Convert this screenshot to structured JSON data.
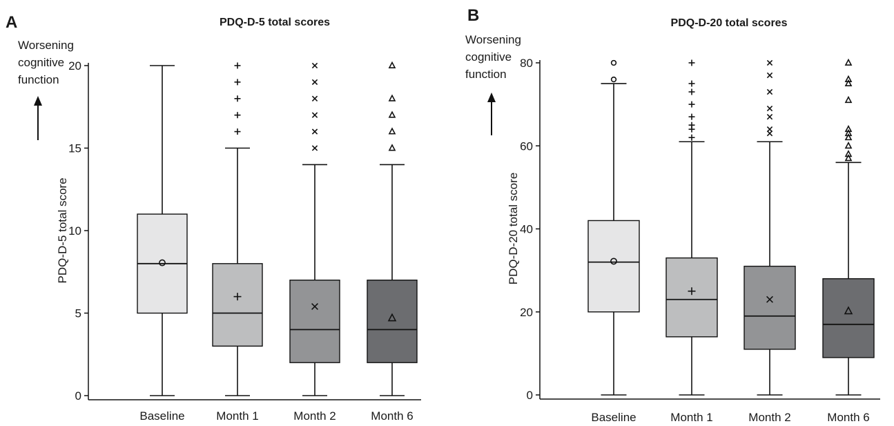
{
  "chart_data": [
    {
      "type": "box",
      "panel": "A",
      "title": "PDQ-D-5 total scores",
      "xlabel": "",
      "ylabel": "PDQ-D-5 total score",
      "annotation": [
        "Worsening",
        "cognitive",
        "function"
      ],
      "ylim": [
        0,
        20
      ],
      "yticks": [
        0,
        5,
        10,
        15,
        20
      ],
      "grid": false,
      "categories": [
        "Baseline",
        "Month 1",
        "Month 2",
        "Month 6"
      ],
      "series": [
        {
          "category": "Baseline",
          "min": 0,
          "q1": 5,
          "median": 8,
          "q3": 11,
          "max": 20,
          "mean": 8.05,
          "mean_marker": "circle",
          "outliers": [],
          "fill": "#e6e6e7"
        },
        {
          "category": "Month 1",
          "min": 0,
          "q1": 3,
          "median": 5,
          "q3": 8,
          "max": 15,
          "mean": 6.0,
          "mean_marker": "plus",
          "outliers": [
            16,
            17,
            18,
            19,
            20
          ],
          "fill": "#bdbebf"
        },
        {
          "category": "Month 2",
          "min": 0,
          "q1": 2,
          "median": 4,
          "q3": 7,
          "max": 14,
          "mean": 5.4,
          "mean_marker": "cross",
          "outliers": [
            15,
            16,
            17,
            18,
            19,
            20
          ],
          "fill": "#939496"
        },
        {
          "category": "Month 6",
          "min": 0,
          "q1": 2,
          "median": 4,
          "q3": 7,
          "max": 14,
          "mean": 4.7,
          "mean_marker": "triangle",
          "outliers": [
            15,
            16,
            17,
            18,
            20
          ],
          "fill": "#6c6d70"
        }
      ]
    },
    {
      "type": "box",
      "panel": "B",
      "title": "PDQ-D-20 total scores",
      "xlabel": "",
      "ylabel": "PDQ-D-20 total score",
      "annotation": [
        "Worsening",
        "cognitive",
        "function"
      ],
      "ylim": [
        0,
        80
      ],
      "yticks": [
        0,
        20,
        40,
        60,
        80
      ],
      "grid": false,
      "categories": [
        "Baseline",
        "Month 1",
        "Month 2",
        "Month 6"
      ],
      "series": [
        {
          "category": "Baseline",
          "min": 0,
          "q1": 20,
          "median": 32,
          "q3": 42,
          "max": 75,
          "mean": 32.2,
          "mean_marker": "circle",
          "outliers": [
            76,
            80
          ],
          "fill": "#e6e6e7"
        },
        {
          "category": "Month 1",
          "min": 0,
          "q1": 14,
          "median": 23,
          "q3": 33,
          "max": 61,
          "mean": 25.0,
          "mean_marker": "plus",
          "outliers": [
            62,
            64,
            65,
            67,
            70,
            73,
            75,
            80
          ],
          "fill": "#bdbebf"
        },
        {
          "category": "Month 2",
          "min": 0,
          "q1": 11,
          "median": 19,
          "q3": 31,
          "max": 61,
          "mean": 23.0,
          "mean_marker": "cross",
          "outliers": [
            63,
            64,
            67,
            69,
            73,
            77,
            80
          ],
          "fill": "#939496"
        },
        {
          "category": "Month 6",
          "min": 0,
          "q1": 9,
          "median": 17,
          "q3": 28,
          "max": 56,
          "mean": 20.2,
          "mean_marker": "triangle",
          "outliers": [
            57,
            58,
            60,
            62,
            63,
            64,
            71,
            75,
            76,
            80
          ],
          "fill": "#6c6d70"
        }
      ]
    }
  ]
}
